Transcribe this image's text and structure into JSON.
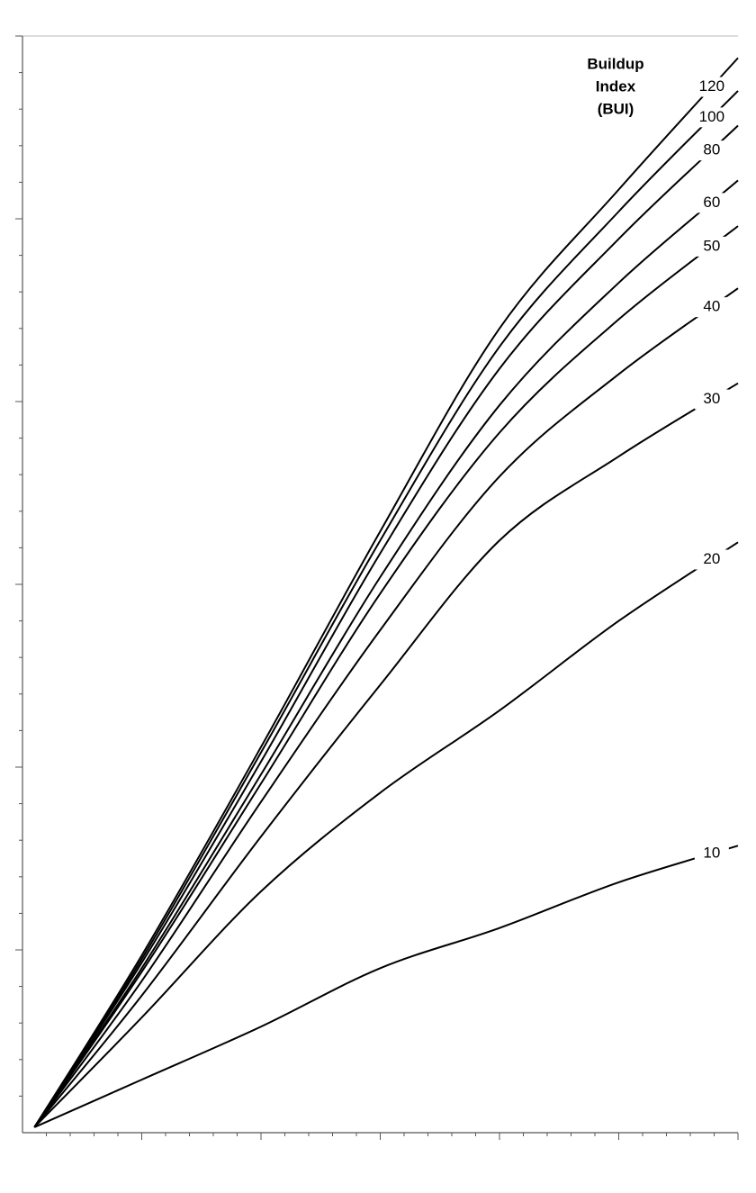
{
  "chart_data": {
    "type": "line",
    "annotation": [
      "Buildup",
      "Index",
      "(BUI)"
    ],
    "x": [
      1,
      10,
      20,
      30,
      40,
      50,
      60
    ],
    "series": [
      {
        "name": "10",
        "color": "#000000",
        "values": [
          0.3,
          2.9,
          5.8,
          9.0,
          11.2,
          13.7,
          15.7
        ]
      },
      {
        "name": "20",
        "color": "#000000",
        "values": [
          0.3,
          6.3,
          13.2,
          18.6,
          23.1,
          28.0,
          32.3
        ]
      },
      {
        "name": "30",
        "color": "#000000",
        "values": [
          0.3,
          7.5,
          16.2,
          24.5,
          32.4,
          37.0,
          41.0
        ]
      },
      {
        "name": "40",
        "color": "#000000",
        "values": [
          0.3,
          8.3,
          18.1,
          27.5,
          35.9,
          41.5,
          46.2
        ]
      },
      {
        "name": "50",
        "color": "#000000",
        "values": [
          0.3,
          8.8,
          19.1,
          29.5,
          38.3,
          44.5,
          49.6
        ]
      },
      {
        "name": "60",
        "color": "#000000",
        "values": [
          0.3,
          9.0,
          19.6,
          30.4,
          39.8,
          46.5,
          52.1
        ]
      },
      {
        "name": "80",
        "color": "#000000",
        "values": [
          0.3,
          9.3,
          20.3,
          31.7,
          41.8,
          48.9,
          55.1
        ]
      },
      {
        "name": "100",
        "color": "#000000",
        "values": [
          0.3,
          9.5,
          20.8,
          32.4,
          43.0,
          50.4,
          57.0
        ]
      },
      {
        "name": "120",
        "color": "#000000",
        "values": [
          0.3,
          9.7,
          21.1,
          32.9,
          44.0,
          51.6,
          58.8
        ]
      }
    ],
    "xlim": [
      0,
      60
    ],
    "ylim": [
      0,
      60
    ],
    "xticks": [
      2,
      4,
      6,
      8,
      10,
      12,
      14,
      16,
      18,
      20,
      22,
      24,
      26,
      28,
      30,
      32,
      34,
      36,
      38,
      40,
      42,
      44,
      46,
      48,
      50,
      52,
      54,
      56,
      58,
      60
    ],
    "yticks": [
      2,
      4,
      6,
      8,
      10,
      12,
      14,
      16,
      18,
      20,
      22,
      24,
      26,
      28,
      30,
      32,
      34,
      36,
      38,
      40,
      42,
      44,
      46,
      48,
      50,
      52,
      54,
      56,
      58,
      60
    ],
    "major_tick_every": 10
  }
}
